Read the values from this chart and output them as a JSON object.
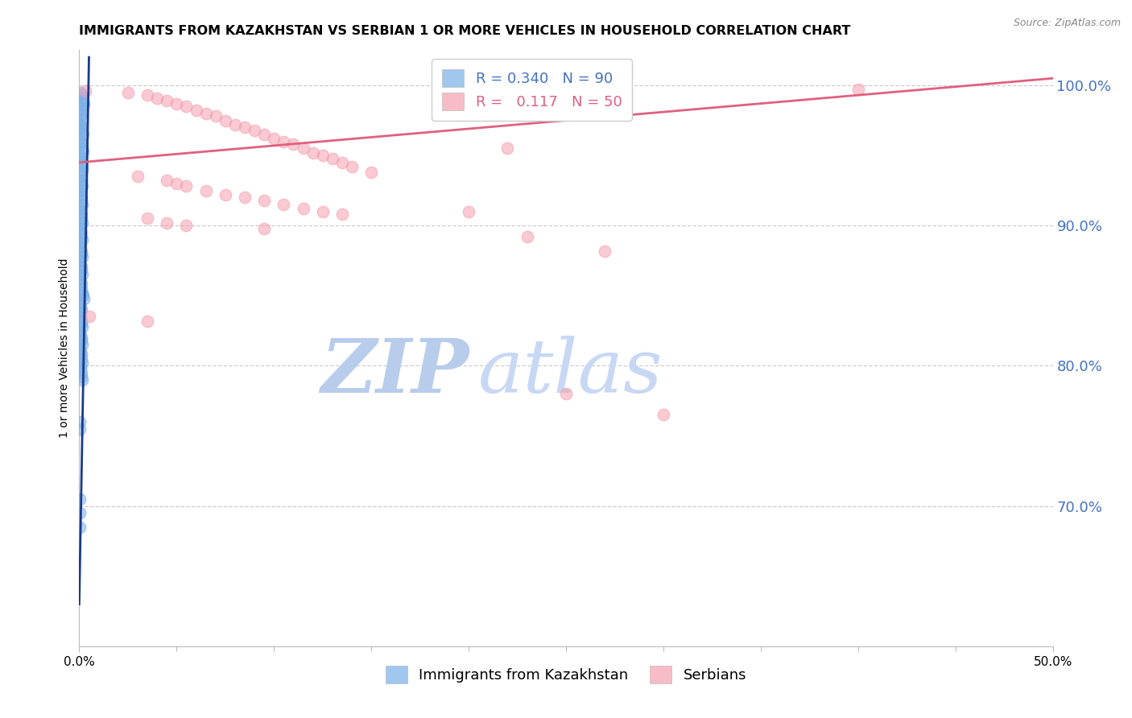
{
  "title": "IMMIGRANTS FROM KAZAKHSTAN VS SERBIAN 1 OR MORE VEHICLES IN HOUSEHOLD CORRELATION CHART",
  "source": "Source: ZipAtlas.com",
  "ylabel": "1 or more Vehicles in Household",
  "legend_labels": [
    "Immigrants from Kazakhstan",
    "Serbians"
  ],
  "legend_r": [
    0.34,
    0.117
  ],
  "legend_n": [
    90,
    50
  ],
  "xlim": [
    0.0,
    50.0
  ],
  "ylim": [
    60.0,
    102.5
  ],
  "right_yticks": [
    70.0,
    80.0,
    90.0,
    100.0
  ],
  "xticks": [
    0.0,
    50.0
  ],
  "grid_color": "#cccccc",
  "blue_color": "#7ab0e8",
  "pink_color": "#f5a0b0",
  "blue_trendline_color": "#1a3a8a",
  "pink_trendline_color": "#e06080",
  "blue_scatter": [
    [
      0.05,
      99.5
    ],
    [
      0.1,
      99.3
    ],
    [
      0.15,
      99.1
    ],
    [
      0.18,
      98.9
    ],
    [
      0.22,
      98.7
    ],
    [
      0.05,
      98.4
    ],
    [
      0.1,
      98.2
    ],
    [
      0.12,
      98.0
    ],
    [
      0.08,
      97.8
    ],
    [
      0.15,
      97.6
    ],
    [
      0.03,
      97.3
    ],
    [
      0.06,
      97.1
    ],
    [
      0.1,
      96.9
    ],
    [
      0.12,
      96.7
    ],
    [
      0.18,
      96.5
    ],
    [
      0.04,
      96.2
    ],
    [
      0.08,
      96.0
    ],
    [
      0.12,
      95.8
    ],
    [
      0.15,
      95.5
    ],
    [
      0.2,
      95.3
    ],
    [
      0.04,
      95.0
    ],
    [
      0.07,
      94.8
    ],
    [
      0.1,
      94.5
    ],
    [
      0.13,
      94.3
    ],
    [
      0.16,
      94.0
    ],
    [
      0.03,
      93.8
    ],
    [
      0.06,
      93.5
    ],
    [
      0.09,
      93.2
    ],
    [
      0.12,
      93.0
    ],
    [
      0.15,
      92.8
    ],
    [
      0.03,
      92.5
    ],
    [
      0.06,
      92.2
    ],
    [
      0.09,
      92.0
    ],
    [
      0.12,
      91.8
    ],
    [
      0.16,
      91.5
    ],
    [
      0.03,
      91.2
    ],
    [
      0.06,
      91.0
    ],
    [
      0.09,
      90.8
    ],
    [
      0.12,
      90.5
    ],
    [
      0.15,
      90.2
    ],
    [
      0.03,
      90.0
    ],
    [
      0.06,
      89.8
    ],
    [
      0.09,
      89.5
    ],
    [
      0.12,
      89.2
    ],
    [
      0.15,
      89.0
    ],
    [
      0.03,
      88.8
    ],
    [
      0.06,
      88.5
    ],
    [
      0.09,
      88.2
    ],
    [
      0.12,
      88.0
    ],
    [
      0.15,
      87.8
    ],
    [
      0.03,
      87.5
    ],
    [
      0.06,
      87.2
    ],
    [
      0.09,
      87.0
    ],
    [
      0.12,
      86.8
    ],
    [
      0.15,
      86.5
    ],
    [
      0.03,
      86.2
    ],
    [
      0.06,
      86.0
    ],
    [
      0.09,
      85.8
    ],
    [
      0.12,
      85.5
    ],
    [
      0.15,
      85.2
    ],
    [
      0.2,
      85.0
    ],
    [
      0.25,
      84.8
    ],
    [
      0.03,
      84.5
    ],
    [
      0.06,
      84.2
    ],
    [
      0.09,
      84.0
    ],
    [
      0.03,
      83.8
    ],
    [
      0.06,
      83.5
    ],
    [
      0.09,
      83.2
    ],
    [
      0.12,
      83.0
    ],
    [
      0.15,
      82.8
    ],
    [
      0.03,
      82.5
    ],
    [
      0.06,
      82.2
    ],
    [
      0.09,
      82.0
    ],
    [
      0.12,
      81.8
    ],
    [
      0.15,
      81.5
    ],
    [
      0.03,
      81.2
    ],
    [
      0.06,
      81.0
    ],
    [
      0.09,
      80.8
    ],
    [
      0.12,
      80.5
    ],
    [
      0.15,
      80.2
    ],
    [
      0.03,
      80.0
    ],
    [
      0.06,
      79.8
    ],
    [
      0.09,
      79.5
    ],
    [
      0.12,
      79.2
    ],
    [
      0.15,
      79.0
    ],
    [
      0.02,
      76.0
    ],
    [
      0.04,
      75.5
    ],
    [
      0.02,
      70.5
    ],
    [
      0.02,
      69.5
    ],
    [
      0.02,
      68.5
    ]
  ],
  "pink_scatter": [
    [
      0.3,
      99.6
    ],
    [
      2.5,
      99.5
    ],
    [
      3.5,
      99.3
    ],
    [
      4.0,
      99.1
    ],
    [
      4.5,
      98.9
    ],
    [
      5.0,
      98.7
    ],
    [
      5.5,
      98.5
    ],
    [
      6.0,
      98.2
    ],
    [
      6.5,
      98.0
    ],
    [
      7.0,
      97.8
    ],
    [
      7.5,
      97.5
    ],
    [
      8.0,
      97.2
    ],
    [
      8.5,
      97.0
    ],
    [
      9.0,
      96.8
    ],
    [
      9.5,
      96.5
    ],
    [
      10.0,
      96.2
    ],
    [
      10.5,
      96.0
    ],
    [
      11.0,
      95.8
    ],
    [
      11.5,
      95.5
    ],
    [
      12.0,
      95.2
    ],
    [
      12.5,
      95.0
    ],
    [
      13.0,
      94.8
    ],
    [
      13.5,
      94.5
    ],
    [
      3.0,
      93.5
    ],
    [
      4.5,
      93.2
    ],
    [
      5.0,
      93.0
    ],
    [
      5.5,
      92.8
    ],
    [
      6.5,
      92.5
    ],
    [
      7.5,
      92.2
    ],
    [
      8.5,
      92.0
    ],
    [
      9.5,
      91.8
    ],
    [
      10.5,
      91.5
    ],
    [
      11.5,
      91.2
    ],
    [
      12.5,
      91.0
    ],
    [
      13.5,
      90.8
    ],
    [
      3.5,
      90.5
    ],
    [
      4.5,
      90.2
    ],
    [
      5.5,
      90.0
    ],
    [
      9.5,
      89.8
    ],
    [
      23.0,
      89.2
    ],
    [
      0.5,
      83.5
    ],
    [
      3.5,
      83.2
    ],
    [
      27.0,
      88.2
    ],
    [
      22.0,
      95.5
    ],
    [
      40.0,
      99.7
    ],
    [
      25.0,
      78.0
    ],
    [
      30.0,
      76.5
    ],
    [
      14.0,
      94.2
    ],
    [
      15.0,
      93.8
    ],
    [
      20.0,
      91.0
    ]
  ],
  "blue_trend_x": [
    0.0,
    0.5
  ],
  "blue_trend_y": [
    63.0,
    102.0
  ],
  "pink_trend_x": [
    0.0,
    50.0
  ],
  "pink_trend_y": [
    94.5,
    100.5
  ],
  "watermark_zip": "ZIP",
  "watermark_atlas": "atlas",
  "watermark_zip_color": "#b8ccec",
  "watermark_atlas_color": "#c8d8f4",
  "title_fontsize": 11.5,
  "axis_label_fontsize": 10,
  "tick_fontsize": 11,
  "legend_fontsize": 13,
  "source_fontsize": 9
}
